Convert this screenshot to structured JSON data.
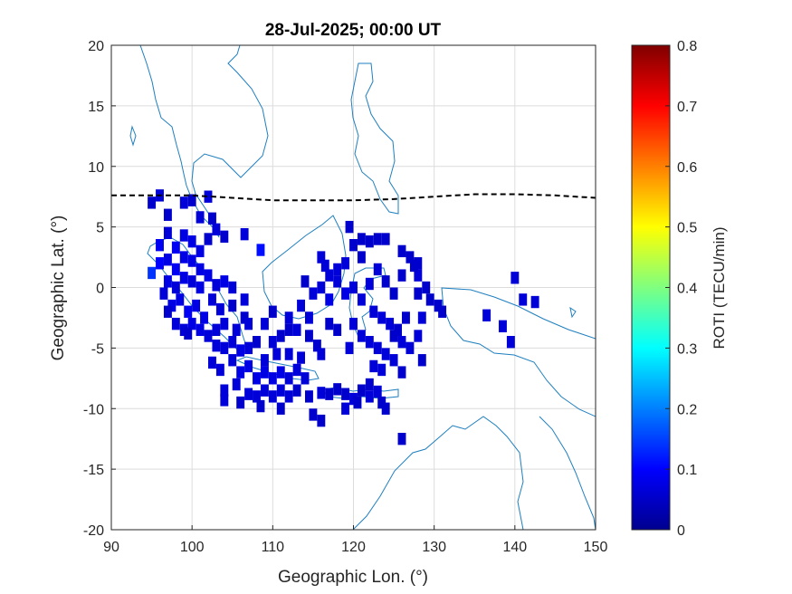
{
  "chart_data": {
    "type": "heatmap",
    "title": "28-Jul-2025; 00:00 UT",
    "xlabel": "Geographic Lon. (°)",
    "ylabel": "Geographic Lat. (°)",
    "xlim": [
      90,
      150
    ],
    "ylim": [
      -20,
      20
    ],
    "xticks": [
      90,
      100,
      110,
      120,
      130,
      140,
      150
    ],
    "yticks": [
      -20,
      -15,
      -10,
      -5,
      0,
      5,
      10,
      15,
      20
    ],
    "grid": true,
    "colorbar": {
      "label": "ROTI (TECU/min)",
      "range": [
        0,
        0.8
      ],
      "ticks": [
        0,
        0.1,
        0.2,
        0.3,
        0.4,
        0.5,
        0.6,
        0.7,
        0.8
      ],
      "colormap": "jet"
    },
    "magnetic_equator": {
      "style": "dashed",
      "lon": [
        90,
        100,
        105,
        110,
        115,
        120,
        125,
        130,
        135,
        140,
        145,
        150
      ],
      "lat": [
        7.6,
        7.6,
        7.4,
        7.2,
        7.2,
        7.2,
        7.3,
        7.5,
        7.7,
        7.7,
        7.6,
        7.4
      ]
    },
    "cell_size_deg": [
      1,
      1
    ],
    "values": [
      [
        96.0,
        7.6,
        0.07
      ],
      [
        95.0,
        7.0,
        0.06
      ],
      [
        97.0,
        6.0,
        0.06
      ],
      [
        99.0,
        7.0,
        0.07
      ],
      [
        100.0,
        7.2,
        0.06
      ],
      [
        102.0,
        7.5,
        0.07
      ],
      [
        101.0,
        5.8,
        0.07
      ],
      [
        102.5,
        5.7,
        0.06
      ],
      [
        103.0,
        4.8,
        0.07
      ],
      [
        102.0,
        4.0,
        0.06
      ],
      [
        104.0,
        4.2,
        0.06
      ],
      [
        101.0,
        3.0,
        0.08
      ],
      [
        97.0,
        4.5,
        0.07
      ],
      [
        96.0,
        3.5,
        0.09
      ],
      [
        98.0,
        3.3,
        0.09
      ],
      [
        99.0,
        4.3,
        0.08
      ],
      [
        100.0,
        3.8,
        0.08
      ],
      [
        106.5,
        4.4,
        0.07
      ],
      [
        108.5,
        3.1,
        0.11
      ],
      [
        95.0,
        1.2,
        0.14
      ],
      [
        96.0,
        2.0,
        0.1
      ],
      [
        97.0,
        2.3,
        0.08
      ],
      [
        98.0,
        1.5,
        0.09
      ],
      [
        99.0,
        2.5,
        0.08
      ],
      [
        100.0,
        2.2,
        0.08
      ],
      [
        101.0,
        1.5,
        0.08
      ],
      [
        102.0,
        1.0,
        0.08
      ],
      [
        97.0,
        0.5,
        0.08
      ],
      [
        98.0,
        0.0,
        0.07
      ],
      [
        99.0,
        0.8,
        0.08
      ],
      [
        100.0,
        0.5,
        0.07
      ],
      [
        101.0,
        0.0,
        0.08
      ],
      [
        103.0,
        0.2,
        0.07
      ],
      [
        104.0,
        0.5,
        0.08
      ],
      [
        105.0,
        0.0,
        0.07
      ],
      [
        96.5,
        -0.5,
        0.07
      ],
      [
        97.5,
        -1.5,
        0.08
      ],
      [
        98.5,
        -1.0,
        0.08
      ],
      [
        99.5,
        -2.0,
        0.09
      ],
      [
        100.5,
        -1.5,
        0.08
      ],
      [
        101.5,
        -2.5,
        0.08
      ],
      [
        102.5,
        -1.0,
        0.07
      ],
      [
        103.5,
        -1.8,
        0.07
      ],
      [
        105.0,
        -1.5,
        0.06
      ],
      [
        106.5,
        -1.0,
        0.07
      ],
      [
        97.0,
        -2.0,
        0.06
      ],
      [
        98.0,
        -3.0,
        0.07
      ],
      [
        99.0,
        -3.5,
        0.07
      ],
      [
        100.0,
        -3.0,
        0.08
      ],
      [
        101.0,
        -3.5,
        0.08
      ],
      [
        102.0,
        -4.0,
        0.07
      ],
      [
        103.0,
        -3.5,
        0.07
      ],
      [
        104.0,
        -3.0,
        0.07
      ],
      [
        105.5,
        -3.5,
        0.07
      ],
      [
        106.5,
        -2.5,
        0.06
      ],
      [
        99.5,
        -3.8,
        0.06
      ],
      [
        103.0,
        -4.8,
        0.07
      ],
      [
        104.0,
        -5.0,
        0.07
      ],
      [
        105.0,
        -4.5,
        0.07
      ],
      [
        106.0,
        -5.2,
        0.08
      ],
      [
        107.0,
        -5.0,
        0.07
      ],
      [
        108.0,
        -4.5,
        0.06
      ],
      [
        102.5,
        -6.2,
        0.07
      ],
      [
        103.5,
        -6.8,
        0.07
      ],
      [
        105.0,
        -6.0,
        0.07
      ],
      [
        106.0,
        -7.0,
        0.08
      ],
      [
        107.0,
        -6.5,
        0.08
      ],
      [
        108.0,
        -7.5,
        0.08
      ],
      [
        109.0,
        -7.0,
        0.08
      ],
      [
        110.0,
        -7.5,
        0.08
      ],
      [
        111.0,
        -7.0,
        0.08
      ],
      [
        112.0,
        -7.5,
        0.07
      ],
      [
        113.0,
        -6.8,
        0.07
      ],
      [
        114.0,
        -7.5,
        0.07
      ],
      [
        104.0,
        -8.5,
        0.07
      ],
      [
        105.5,
        -8.0,
        0.07
      ],
      [
        107.0,
        -8.8,
        0.07
      ],
      [
        108.0,
        -9.0,
        0.07
      ],
      [
        109.0,
        -8.5,
        0.07
      ],
      [
        110.0,
        -9.0,
        0.07
      ],
      [
        111.0,
        -8.5,
        0.07
      ],
      [
        112.0,
        -9.0,
        0.07
      ],
      [
        113.0,
        -8.5,
        0.06
      ],
      [
        114.5,
        -9.0,
        0.06
      ],
      [
        116.0,
        -8.7,
        0.07
      ],
      [
        117.0,
        -8.8,
        0.06
      ],
      [
        118.0,
        -8.4,
        0.06
      ],
      [
        119.0,
        -8.8,
        0.06
      ],
      [
        120.0,
        -9.2,
        0.07
      ],
      [
        121.0,
        -8.5,
        0.06
      ],
      [
        122.0,
        -9.0,
        0.07
      ],
      [
        123.0,
        -8.6,
        0.07
      ],
      [
        104.0,
        -9.3,
        0.07
      ],
      [
        106.0,
        -9.5,
        0.06
      ],
      [
        108.5,
        -9.8,
        0.06
      ],
      [
        111.0,
        -10.0,
        0.06
      ],
      [
        115.0,
        -10.5,
        0.06
      ],
      [
        116.0,
        -11.0,
        0.06
      ],
      [
        119.0,
        -10.0,
        0.07
      ],
      [
        120.5,
        -9.5,
        0.06
      ],
      [
        122.0,
        -8.0,
        0.06
      ],
      [
        123.5,
        -9.5,
        0.06
      ],
      [
        124.0,
        -10.0,
        0.06
      ],
      [
        126.0,
        -12.5,
        0.06
      ],
      [
        109.0,
        -6.0,
        0.07
      ],
      [
        110.5,
        -5.5,
        0.07
      ],
      [
        111.0,
        -4.0,
        0.06
      ],
      [
        112.0,
        -3.5,
        0.06
      ],
      [
        109.0,
        -3.0,
        0.07
      ],
      [
        107.0,
        -3.0,
        0.07
      ],
      [
        110.0,
        -2.0,
        0.06
      ],
      [
        112.0,
        -2.5,
        0.07
      ],
      [
        113.0,
        -3.5,
        0.07
      ],
      [
        114.5,
        -4.0,
        0.06
      ],
      [
        115.5,
        -4.8,
        0.06
      ],
      [
        113.5,
        -1.5,
        0.07
      ],
      [
        114.0,
        0.5,
        0.06
      ],
      [
        115.0,
        -0.5,
        0.07
      ],
      [
        116.0,
        0.0,
        0.07
      ],
      [
        117.0,
        -1.0,
        0.08
      ],
      [
        118.0,
        0.5,
        0.07
      ],
      [
        119.0,
        -0.5,
        0.08
      ],
      [
        120.0,
        0.0,
        0.07
      ],
      [
        121.0,
        -1.0,
        0.07
      ],
      [
        122.0,
        0.3,
        0.07
      ],
      [
        116.0,
        2.5,
        0.07
      ],
      [
        117.0,
        1.0,
        0.07
      ],
      [
        118.0,
        1.5,
        0.07
      ],
      [
        119.0,
        2.0,
        0.07
      ],
      [
        120.0,
        3.5,
        0.06
      ],
      [
        121.0,
        2.5,
        0.06
      ],
      [
        122.0,
        3.8,
        0.06
      ],
      [
        123.0,
        1.5,
        0.07
      ],
      [
        124.0,
        0.5,
        0.06
      ],
      [
        125.0,
        -0.5,
        0.06
      ],
      [
        126.0,
        1.0,
        0.06
      ],
      [
        127.0,
        2.5,
        0.06
      ],
      [
        128.0,
        1.0,
        0.07
      ],
      [
        119.5,
        5.0,
        0.06
      ],
      [
        121.0,
        4.0,
        0.06
      ],
      [
        123.0,
        4.0,
        0.06
      ],
      [
        124.0,
        4.0,
        0.06
      ],
      [
        126.0,
        3.0,
        0.06
      ],
      [
        127.5,
        1.8,
        0.06
      ],
      [
        129.0,
        0.0,
        0.06
      ],
      [
        128.0,
        -0.5,
        0.06
      ],
      [
        129.5,
        -1.0,
        0.06
      ],
      [
        130.5,
        -1.5,
        0.06
      ],
      [
        131.0,
        -2.0,
        0.06
      ],
      [
        128.5,
        -2.5,
        0.07
      ],
      [
        122.5,
        -2.0,
        0.07
      ],
      [
        123.5,
        -2.5,
        0.07
      ],
      [
        124.5,
        -3.0,
        0.07
      ],
      [
        125.5,
        -3.5,
        0.06
      ],
      [
        126.5,
        -2.5,
        0.06
      ],
      [
        120.0,
        -3.0,
        0.07
      ],
      [
        121.0,
        -4.0,
        0.07
      ],
      [
        122.0,
        -4.5,
        0.07
      ],
      [
        123.0,
        -5.0,
        0.07
      ],
      [
        124.0,
        -5.5,
        0.07
      ],
      [
        125.0,
        -4.0,
        0.06
      ],
      [
        126.0,
        -4.5,
        0.07
      ],
      [
        127.0,
        -5.0,
        0.07
      ],
      [
        128.0,
        -4.0,
        0.07
      ],
      [
        128.5,
        -6.0,
        0.06
      ],
      [
        119.5,
        -5.0,
        0.07
      ],
      [
        122.5,
        -6.5,
        0.07
      ],
      [
        123.5,
        -6.8,
        0.07
      ],
      [
        125.0,
        -6.0,
        0.07
      ],
      [
        126.0,
        -7.0,
        0.06
      ],
      [
        117.0,
        -3.0,
        0.06
      ],
      [
        118.0,
        -3.5,
        0.06
      ],
      [
        116.0,
        -5.5,
        0.07
      ],
      [
        112.0,
        -5.5,
        0.07
      ],
      [
        113.5,
        -5.8,
        0.07
      ],
      [
        140.0,
        0.8,
        0.07
      ],
      [
        141.0,
        -1.0,
        0.07
      ],
      [
        142.5,
        -1.2,
        0.07
      ],
      [
        136.5,
        -2.3,
        0.07
      ],
      [
        138.5,
        -3.2,
        0.07
      ],
      [
        139.5,
        -4.5,
        0.07
      ],
      [
        128.0,
        2.0,
        0.06
      ],
      [
        114.5,
        -2.5,
        0.07
      ],
      [
        110.0,
        -4.5,
        0.07
      ],
      [
        116.5,
        1.8,
        0.07
      ]
    ]
  }
}
